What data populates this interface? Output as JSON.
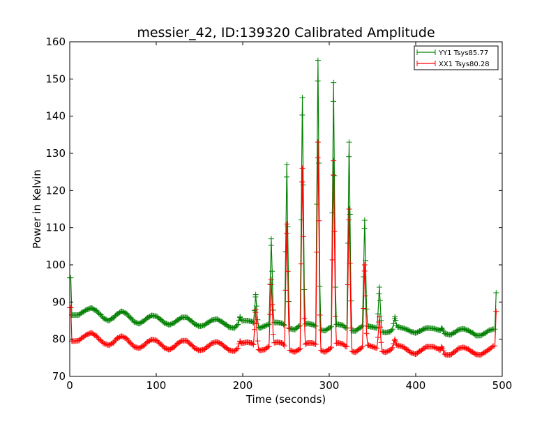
{
  "chart_data": {
    "type": "line",
    "title": "messier_42, ID:139320 Calibrated Amplitude",
    "xlabel": "Time (seconds)",
    "ylabel": "Power in Kelvin",
    "xlim": [
      0,
      500
    ],
    "ylim": [
      70,
      160
    ],
    "xticks": [
      "0",
      "100",
      "200",
      "300",
      "400",
      "500"
    ],
    "yticks": [
      "70",
      "80",
      "90",
      "100",
      "110",
      "120",
      "130",
      "140",
      "150",
      "160"
    ],
    "grid": false,
    "legend_position": "top-right",
    "baseline_step_seconds": 5,
    "series": [
      {
        "name": "YY1 Tsys85.77",
        "color": "#008000",
        "baseline": [
          96.5,
          86.5,
          86.5,
          87.3,
          88,
          88.4,
          87.8,
          86.7,
          85.5,
          85,
          85.7,
          86.8,
          87.5,
          87,
          85.8,
          84.6,
          84.2,
          84.8,
          85.8,
          86.4,
          86.2,
          85.3,
          84.3,
          83.9,
          84.3,
          85.2,
          85.9,
          85.9,
          85,
          84,
          83.5,
          83.7,
          84.5,
          85.2,
          85.4,
          84.8,
          84,
          83.2,
          83,
          84,
          85,
          85,
          84.8,
          84,
          83,
          83.5,
          84,
          84.5,
          84.5,
          84.3,
          83.5,
          82.8,
          82.6,
          83.5,
          84,
          84.2,
          84,
          83.5,
          82.5,
          82.3,
          83,
          84,
          84,
          83.8,
          83,
          82.3,
          82.2,
          83,
          83.8,
          83.5,
          83.3,
          83,
          82,
          81.8,
          82,
          83,
          83.3,
          83,
          82.6,
          82,
          81.7,
          82.2,
          82.8,
          83,
          82.9,
          82.6,
          82,
          81.4,
          81.2,
          81.8,
          82.6,
          82.8,
          82.4,
          81.8,
          81,
          81,
          81.6,
          82.4,
          82.7
        ],
        "end_point": [
          493,
          92.5
        ],
        "peaks": [
          [
            197,
            86
          ],
          [
            215,
            92
          ],
          [
            233,
            107
          ],
          [
            251,
            127
          ],
          [
            269,
            145
          ],
          [
            287,
            155
          ],
          [
            305,
            149
          ],
          [
            323,
            133
          ],
          [
            341,
            112
          ],
          [
            358,
            94
          ],
          [
            376,
            86
          ],
          [
            413,
            83
          ],
          [
            430,
            83
          ]
        ]
      },
      {
        "name": "XX1 Tsys80.28",
        "color": "#ff0000",
        "baseline": [
          88.5,
          79.5,
          79.6,
          80.5,
          81.3,
          81.7,
          81,
          79.8,
          78.8,
          78.4,
          79,
          80.3,
          80.8,
          80.3,
          79,
          77.9,
          77.6,
          78.2,
          79.3,
          79.9,
          79.7,
          78.7,
          77.6,
          77.2,
          77.8,
          78.9,
          79.6,
          79.6,
          78.6,
          77.5,
          77,
          77.2,
          78.1,
          79,
          79.3,
          78.8,
          77.8,
          77,
          76.8,
          77.6,
          79,
          79.2,
          79,
          78,
          77,
          77.2,
          78,
          79,
          79.2,
          79,
          78,
          77,
          76.6,
          77.2,
          78.3,
          79,
          79,
          78.6,
          77,
          76.6,
          77.3,
          78.5,
          79,
          78.8,
          78,
          76.8,
          76.5,
          77.3,
          78.2,
          78.4,
          78,
          77.6,
          76.8,
          76.5,
          77,
          78,
          78.3,
          78,
          77.2,
          76.3,
          76,
          76.8,
          77.6,
          78,
          78,
          77.5,
          76.6,
          75.8,
          75.8,
          76.6,
          77.6,
          77.8,
          77.4,
          76.6,
          75.9,
          75.8,
          76.5,
          77.3,
          78.2
        ],
        "end_point": [
          493,
          87.5
        ],
        "peaks": [
          [
            197,
            79.5
          ],
          [
            215,
            88
          ],
          [
            233,
            96
          ],
          [
            251,
            111
          ],
          [
            269,
            126
          ],
          [
            287,
            133
          ],
          [
            305,
            128
          ],
          [
            323,
            115
          ],
          [
            341,
            100
          ],
          [
            358,
            86
          ],
          [
            376,
            80
          ],
          [
            413,
            78
          ],
          [
            430,
            78
          ]
        ]
      }
    ]
  }
}
